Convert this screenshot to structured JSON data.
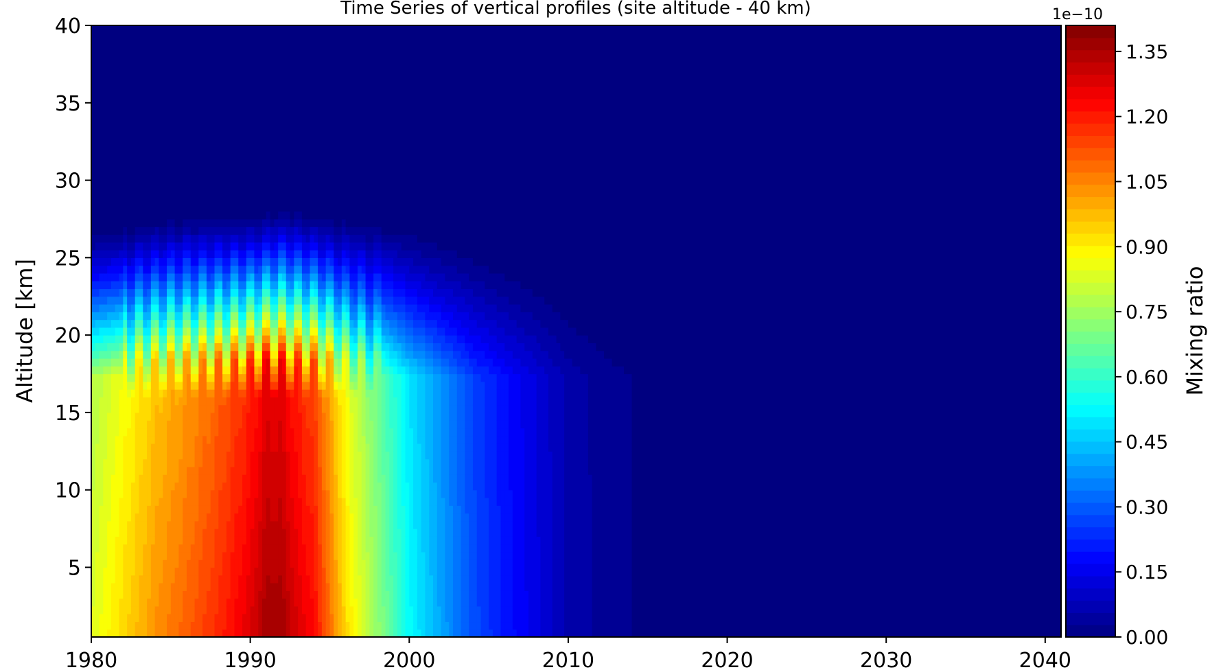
{
  "chart_data": {
    "type": "heatmap",
    "title": "Time Series of vertical profiles (site altitude - 40 km)",
    "xlabel": "",
    "ylabel": "Altitude [km]",
    "xlim": [
      1980,
      2041
    ],
    "ylim": [
      0.5,
      40
    ],
    "x_ticks": [
      "1980",
      "1990",
      "2000",
      "2010",
      "2020",
      "2030",
      "2040"
    ],
    "x_tick_values": [
      1980,
      1990,
      2000,
      2010,
      2020,
      2030,
      2040
    ],
    "y_ticks": [
      "5",
      "10",
      "15",
      "20",
      "25",
      "30",
      "35",
      "40"
    ],
    "y_tick_values": [
      5,
      10,
      15,
      20,
      25,
      30,
      35,
      40
    ],
    "colorbar": {
      "label": "Mixing ratio",
      "exponent": "1e−10",
      "range": [
        0.0,
        1.41
      ],
      "ticks": [
        "0.00",
        "0.15",
        "0.30",
        "0.45",
        "0.60",
        "0.75",
        "0.90",
        "1.05",
        "1.20",
        "1.35"
      ],
      "tick_values": [
        0.0,
        0.15,
        0.3,
        0.45,
        0.6,
        0.75,
        0.9,
        1.05,
        1.2,
        1.35
      ],
      "colormap": "jet",
      "levels": 50
    },
    "surface_profile_by_year": {
      "years": [
        1980,
        1982,
        1984,
        1986,
        1988,
        1990,
        1991,
        1992,
        1993,
        1994,
        1996,
        1998,
        2000,
        2002,
        2004,
        2006,
        2008,
        2010,
        2012,
        2014,
        2016,
        2041
      ],
      "values": [
        0.85,
        0.95,
        1.05,
        1.12,
        1.2,
        1.3,
        1.38,
        1.38,
        1.3,
        1.25,
        0.95,
        0.75,
        0.55,
        0.42,
        0.3,
        0.22,
        0.15,
        0.08,
        0.05,
        0.03,
        0.0,
        0.0
      ]
    },
    "upper_extent_km_by_year": {
      "years": [
        1980,
        1985,
        1990,
        1992,
        1995,
        2000,
        2005,
        2010,
        2014,
        2016
      ],
      "values": [
        27,
        28,
        28,
        28.5,
        28,
        27.5,
        26,
        24,
        21,
        18
      ]
    },
    "pattern": "Values are highest (~1.38e-10) near 1991-1992 below ~20 km, decline after ~1995 and reach ~0 by 2016; above ~28 km the field is ~0 throughout."
  }
}
